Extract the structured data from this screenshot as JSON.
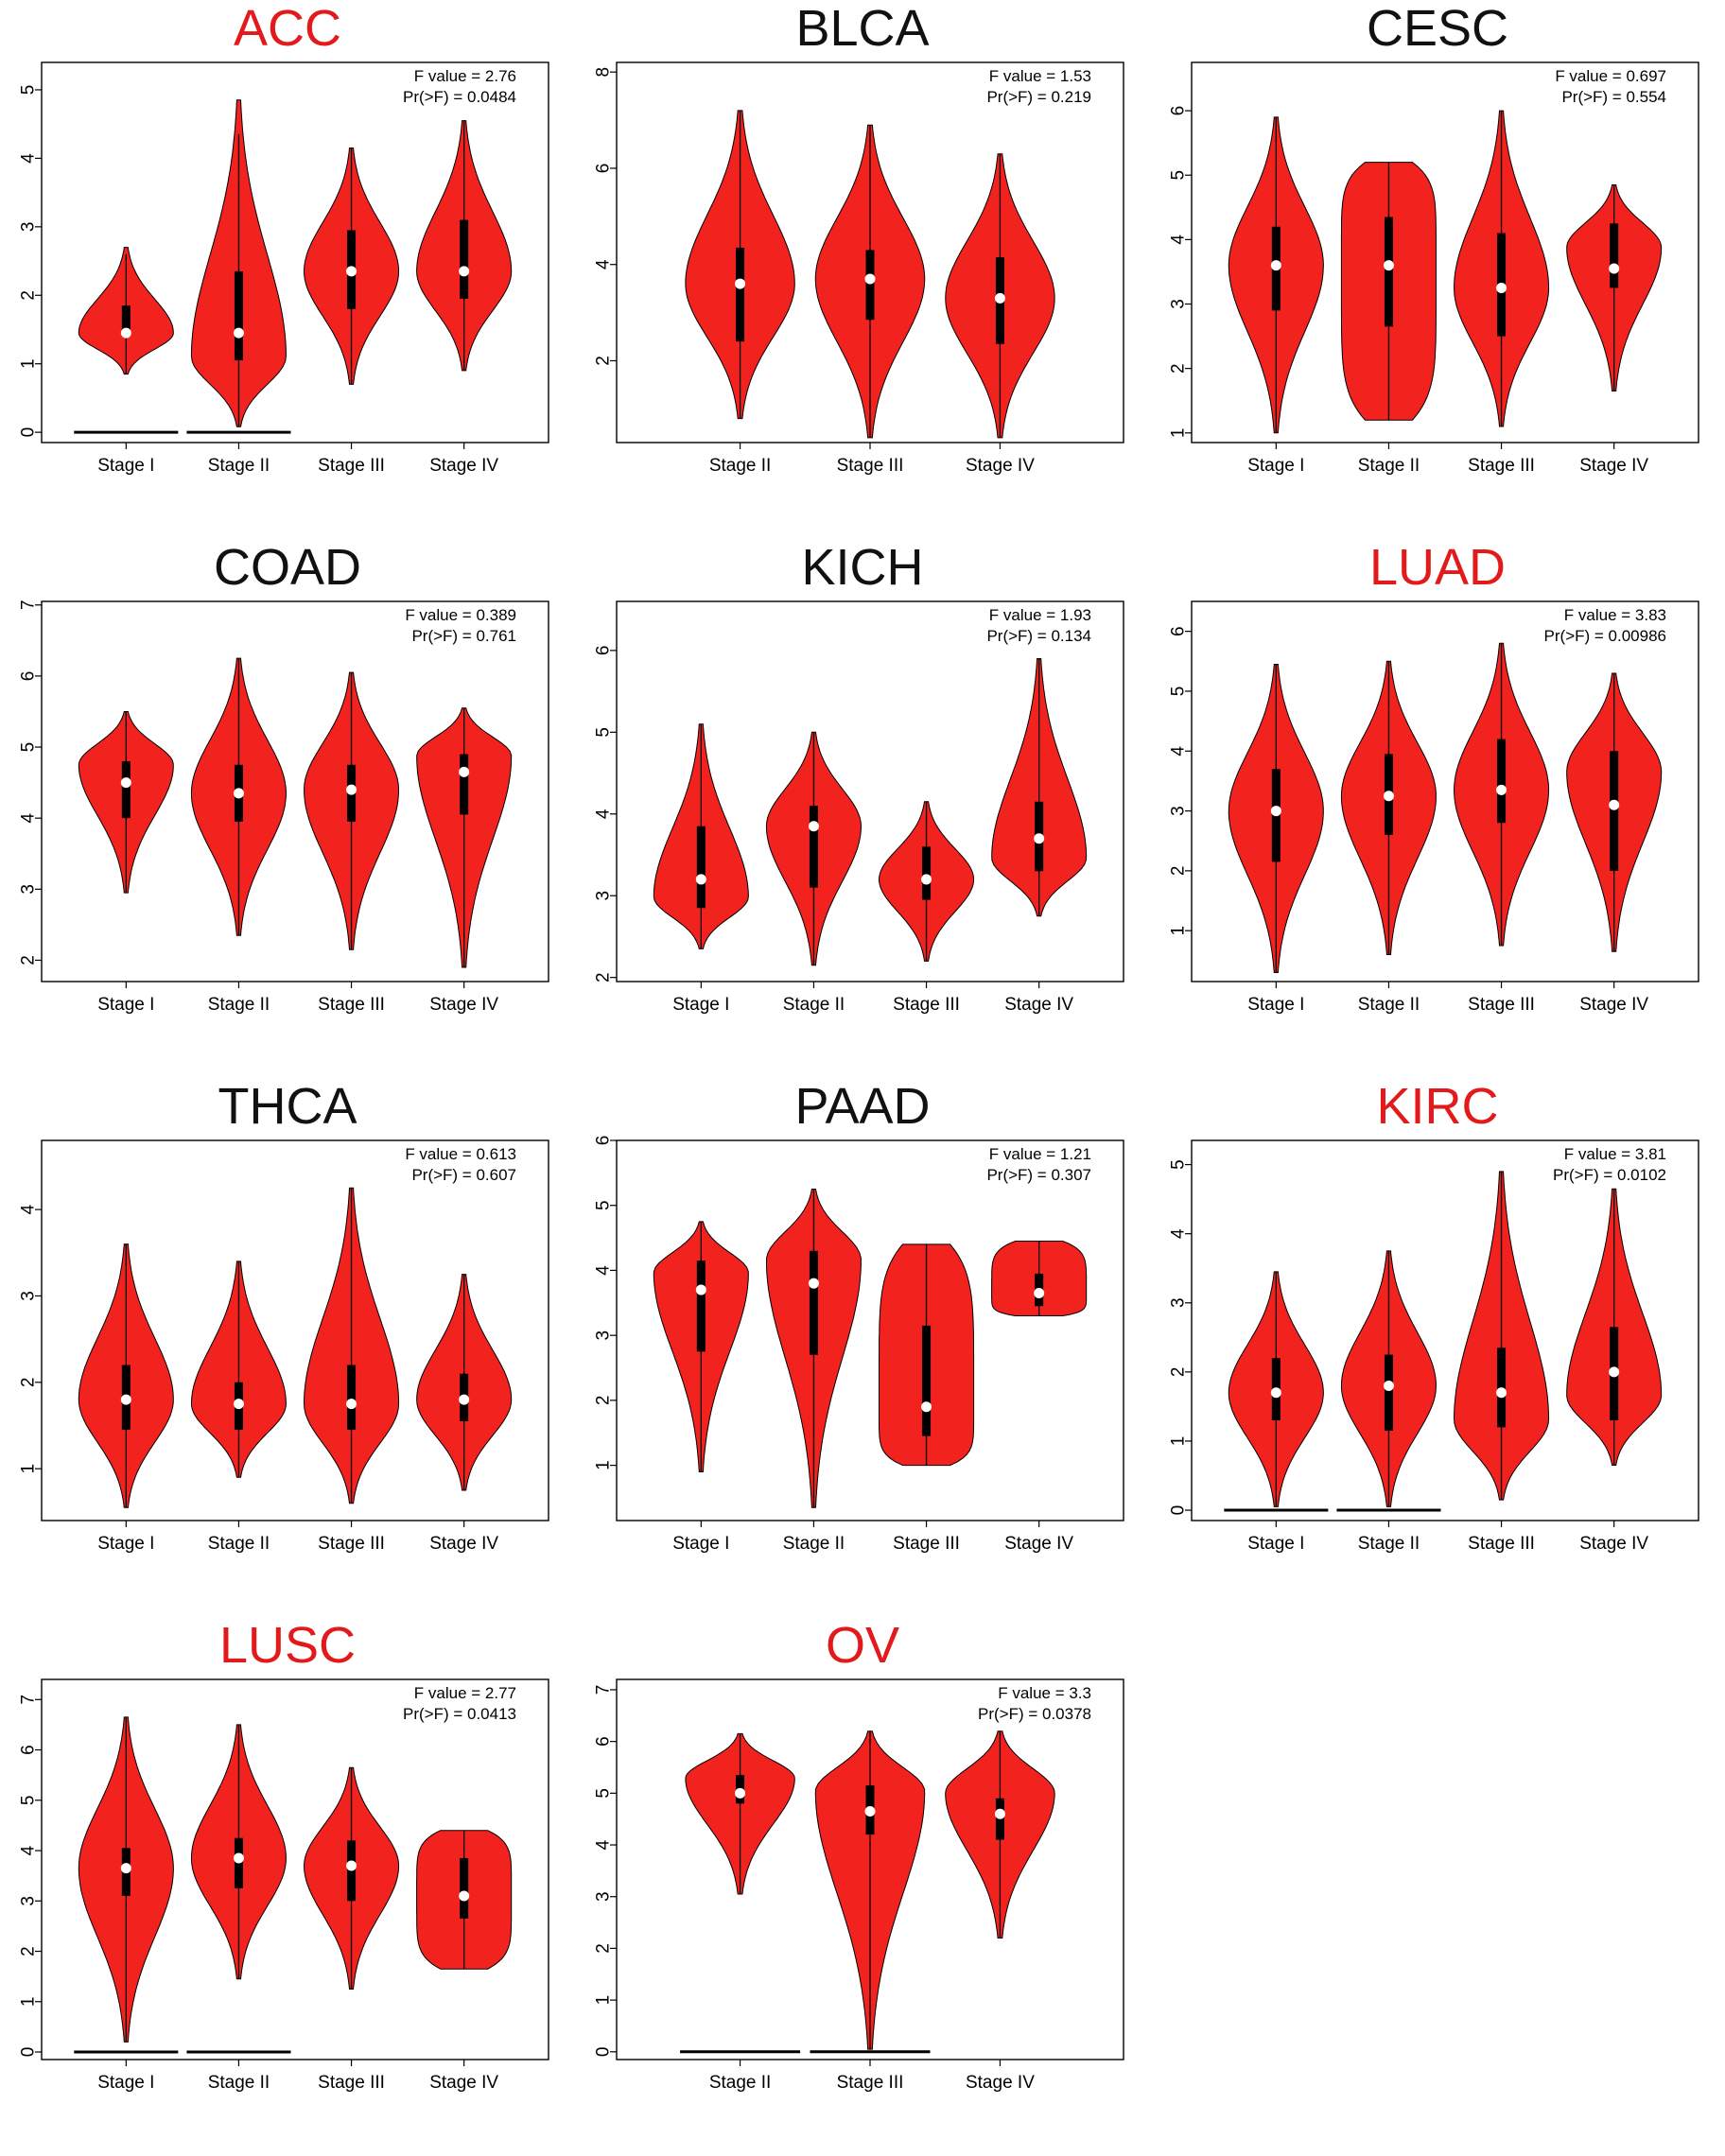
{
  "colors": {
    "violin_fill": "#f2221f",
    "significant_title": "#e31a1c",
    "normal_title": "#111111",
    "box": "#000000",
    "median": "#ffffff"
  },
  "chart_data": [
    {
      "type": "violin",
      "title": "ACC",
      "significant": true,
      "f_label": "F value = 2.76",
      "p_label": "Pr(>F) = 0.0484",
      "categories": [
        "Stage I",
        "Stage II",
        "Stage III",
        "Stage IV"
      ],
      "ylim": [
        -0.15,
        5.4
      ],
      "yticks": [
        0,
        1,
        2,
        3,
        4,
        5
      ],
      "series": [
        {
          "min": 0.85,
          "q1": 1.4,
          "median": 1.45,
          "q3": 1.85,
          "max": 2.7,
          "whisker_high": 2.6,
          "zero_line": true,
          "shape": "normal"
        },
        {
          "min": 0.08,
          "q1": 1.05,
          "median": 1.45,
          "q3": 2.35,
          "max": 4.85,
          "whisker_high": 4.35,
          "zero_line": true,
          "shape": "low"
        },
        {
          "min": 0.7,
          "q1": 1.8,
          "median": 2.35,
          "q3": 2.95,
          "max": 4.15,
          "shape": "normal"
        },
        {
          "min": 0.9,
          "q1": 1.95,
          "median": 2.35,
          "q3": 3.1,
          "max": 4.55,
          "shape": "normal"
        }
      ]
    },
    {
      "type": "violin",
      "title": "BLCA",
      "significant": false,
      "f_label": "F value = 1.53",
      "p_label": "Pr(>F) = 0.219",
      "categories": [
        "Stage II",
        "Stage III",
        "Stage IV"
      ],
      "ylim": [
        0.3,
        8.2
      ],
      "yticks": [
        2,
        4,
        6,
        8
      ],
      "series": [
        {
          "min": 0.8,
          "q1": 2.4,
          "median": 3.6,
          "q3": 4.35,
          "max": 7.2,
          "shape": "normal"
        },
        {
          "min": 0.4,
          "q1": 2.85,
          "median": 3.7,
          "q3": 4.3,
          "max": 6.9,
          "shape": "normal"
        },
        {
          "min": 0.4,
          "q1": 2.35,
          "median": 3.3,
          "q3": 4.15,
          "max": 6.3,
          "shape": "normal"
        }
      ]
    },
    {
      "type": "violin",
      "title": "CESC",
      "significant": false,
      "f_label": "F value = 0.697",
      "p_label": "Pr(>F) = 0.554",
      "categories": [
        "Stage I",
        "Stage II",
        "Stage III",
        "Stage IV"
      ],
      "ylim": [
        0.85,
        6.75
      ],
      "yticks": [
        1,
        2,
        3,
        4,
        5,
        6
      ],
      "series": [
        {
          "min": 1.0,
          "q1": 2.9,
          "median": 3.6,
          "q3": 4.2,
          "max": 5.9,
          "shape": "normal"
        },
        {
          "min": 1.2,
          "q1": 2.65,
          "median": 3.6,
          "q3": 4.35,
          "max": 5.2,
          "shape": "flat"
        },
        {
          "min": 1.1,
          "q1": 2.5,
          "median": 3.25,
          "q3": 4.1,
          "max": 6.0,
          "shape": "normal"
        },
        {
          "min": 1.65,
          "q1": 3.25,
          "median": 3.55,
          "q3": 4.25,
          "max": 4.85,
          "shape": "high"
        }
      ]
    },
    {
      "type": "violin",
      "title": "COAD",
      "significant": false,
      "f_label": "F value = 0.389",
      "p_label": "Pr(>F) = 0.761",
      "categories": [
        "Stage I",
        "Stage II",
        "Stage III",
        "Stage IV"
      ],
      "ylim": [
        1.7,
        7.05
      ],
      "yticks": [
        2,
        3,
        4,
        5,
        6,
        7
      ],
      "series": [
        {
          "min": 2.95,
          "q1": 4.0,
          "median": 4.5,
          "q3": 4.8,
          "max": 5.5,
          "shape": "high"
        },
        {
          "min": 2.35,
          "q1": 3.95,
          "median": 4.35,
          "q3": 4.75,
          "max": 6.25,
          "shape": "normal"
        },
        {
          "min": 2.15,
          "q1": 3.95,
          "median": 4.4,
          "q3": 4.75,
          "max": 6.05,
          "shape": "normal"
        },
        {
          "min": 1.9,
          "q1": 4.05,
          "median": 4.65,
          "q3": 4.9,
          "max": 5.55,
          "shape": "high"
        }
      ]
    },
    {
      "type": "violin",
      "title": "KICH",
      "significant": false,
      "f_label": "F value = 1.93",
      "p_label": "Pr(>F) = 0.134",
      "categories": [
        "Stage I",
        "Stage II",
        "Stage III",
        "Stage IV"
      ],
      "ylim": [
        1.95,
        6.6
      ],
      "yticks": [
        2,
        3,
        4,
        5,
        6
      ],
      "series": [
        {
          "min": 2.35,
          "q1": 2.85,
          "median": 3.2,
          "q3": 3.85,
          "max": 5.1,
          "shape": "low"
        },
        {
          "min": 2.15,
          "q1": 3.1,
          "median": 3.85,
          "q3": 4.1,
          "max": 5.0,
          "shape": "normal"
        },
        {
          "min": 2.2,
          "q1": 2.95,
          "median": 3.2,
          "q3": 3.6,
          "max": 4.15,
          "shape": "normal"
        },
        {
          "min": 2.75,
          "q1": 3.3,
          "median": 3.7,
          "q3": 4.15,
          "max": 5.9,
          "shape": "low"
        }
      ]
    },
    {
      "type": "violin",
      "title": "LUAD",
      "significant": true,
      "f_label": "F value = 3.83",
      "p_label": "Pr(>F) = 0.00986",
      "categories": [
        "Stage I",
        "Stage II",
        "Stage III",
        "Stage IV"
      ],
      "ylim": [
        0.15,
        6.5
      ],
      "yticks": [
        1,
        2,
        3,
        4,
        5,
        6
      ],
      "series": [
        {
          "min": 0.3,
          "q1": 2.15,
          "median": 3.0,
          "q3": 3.7,
          "max": 5.45,
          "shape": "normal"
        },
        {
          "min": 0.6,
          "q1": 2.6,
          "median": 3.25,
          "q3": 3.95,
          "max": 5.5,
          "shape": "normal"
        },
        {
          "min": 0.75,
          "q1": 2.8,
          "median": 3.35,
          "q3": 4.2,
          "max": 5.8,
          "shape": "normal"
        },
        {
          "min": 0.65,
          "q1": 2.0,
          "median": 3.1,
          "q3": 4.0,
          "max": 5.3,
          "shape": "high"
        }
      ]
    },
    {
      "type": "violin",
      "title": "THCA",
      "significant": false,
      "f_label": "F value = 0.613",
      "p_label": "Pr(>F) = 0.607",
      "categories": [
        "Stage I",
        "Stage II",
        "Stage III",
        "Stage IV"
      ],
      "ylim": [
        0.4,
        4.8
      ],
      "yticks": [
        1,
        2,
        3,
        4
      ],
      "series": [
        {
          "min": 0.55,
          "q1": 1.45,
          "median": 1.8,
          "q3": 2.2,
          "max": 3.6,
          "shape": "normal"
        },
        {
          "min": 0.9,
          "q1": 1.45,
          "median": 1.75,
          "q3": 2.0,
          "max": 3.4,
          "shape": "normal"
        },
        {
          "min": 0.6,
          "q1": 1.45,
          "median": 1.75,
          "q3": 2.2,
          "max": 4.25,
          "shape": "normal"
        },
        {
          "min": 0.75,
          "q1": 1.55,
          "median": 1.8,
          "q3": 2.1,
          "max": 3.25,
          "shape": "normal"
        }
      ]
    },
    {
      "type": "violin",
      "title": "PAAD",
      "significant": false,
      "f_label": "F value = 1.21",
      "p_label": "Pr(>F) = 0.307",
      "categories": [
        "Stage I",
        "Stage II",
        "Stage III",
        "Stage IV"
      ],
      "ylim": [
        0.15,
        6.0
      ],
      "yticks": [
        1,
        2,
        3,
        4,
        5,
        6
      ],
      "series": [
        {
          "min": 0.9,
          "q1": 2.75,
          "median": 3.7,
          "q3": 4.15,
          "max": 4.75,
          "shape": "high"
        },
        {
          "min": 0.35,
          "q1": 2.7,
          "median": 3.8,
          "q3": 4.3,
          "max": 5.25,
          "shape": "high"
        },
        {
          "min": 1.0,
          "q1": 1.45,
          "median": 1.9,
          "q3": 3.15,
          "max": 4.4,
          "shape": "flat"
        },
        {
          "min": 3.3,
          "q1": 3.45,
          "median": 3.65,
          "q3": 3.95,
          "max": 4.45,
          "shape": "flat"
        }
      ]
    },
    {
      "type": "violin",
      "title": "KIRC",
      "significant": true,
      "f_label": "F value = 3.81",
      "p_label": "Pr(>F) = 0.0102",
      "categories": [
        "Stage I",
        "Stage II",
        "Stage III",
        "Stage IV"
      ],
      "ylim": [
        -0.15,
        5.35
      ],
      "yticks": [
        0,
        1,
        2,
        3,
        4,
        5
      ],
      "series": [
        {
          "min": 0.05,
          "q1": 1.3,
          "median": 1.7,
          "q3": 2.2,
          "max": 3.45,
          "zero_line": true,
          "shape": "normal"
        },
        {
          "min": 0.05,
          "q1": 1.15,
          "median": 1.8,
          "q3": 2.25,
          "max": 3.75,
          "zero_line": true,
          "shape": "normal"
        },
        {
          "min": 0.15,
          "q1": 1.2,
          "median": 1.7,
          "q3": 2.35,
          "max": 4.9,
          "shape": "low"
        },
        {
          "min": 0.65,
          "q1": 1.3,
          "median": 2.0,
          "q3": 2.65,
          "max": 4.65,
          "shape": "low"
        }
      ]
    },
    {
      "type": "violin",
      "title": "LUSC",
      "significant": true,
      "f_label": "F value = 2.77",
      "p_label": "Pr(>F) = 0.0413",
      "categories": [
        "Stage I",
        "Stage II",
        "Stage III",
        "Stage IV"
      ],
      "ylim": [
        -0.15,
        7.4
      ],
      "yticks": [
        0,
        1,
        2,
        3,
        4,
        5,
        6,
        7
      ],
      "series": [
        {
          "min": 0.2,
          "q1": 3.1,
          "median": 3.65,
          "q3": 4.05,
          "max": 6.65,
          "zero_line": true,
          "shape": "normal"
        },
        {
          "min": 1.45,
          "q1": 3.25,
          "median": 3.85,
          "q3": 4.25,
          "max": 6.5,
          "zero_line": true,
          "shape": "normal"
        },
        {
          "min": 1.25,
          "q1": 3.0,
          "median": 3.7,
          "q3": 4.2,
          "max": 5.65,
          "shape": "normal"
        },
        {
          "min": 1.65,
          "q1": 2.65,
          "median": 3.1,
          "q3": 3.85,
          "max": 4.4,
          "shape": "flat"
        }
      ]
    },
    {
      "type": "violin",
      "title": "OV",
      "significant": true,
      "f_label": "F value = 3.3",
      "p_label": "Pr(>F) = 0.0378",
      "categories": [
        "Stage II",
        "Stage III",
        "Stage IV"
      ],
      "ylim": [
        -0.15,
        7.2
      ],
      "yticks": [
        0,
        1,
        2,
        3,
        4,
        5,
        6,
        7
      ],
      "series": [
        {
          "min": 3.05,
          "q1": 4.8,
          "median": 5.0,
          "q3": 5.35,
          "max": 6.15,
          "zero_line": true,
          "shape": "high"
        },
        {
          "min": 0.05,
          "q1": 4.2,
          "median": 4.65,
          "q3": 5.15,
          "max": 6.2,
          "zero_line": true,
          "shape": "high"
        },
        {
          "min": 2.2,
          "q1": 4.1,
          "median": 4.6,
          "q3": 4.9,
          "max": 6.2,
          "shape": "high"
        }
      ]
    }
  ]
}
